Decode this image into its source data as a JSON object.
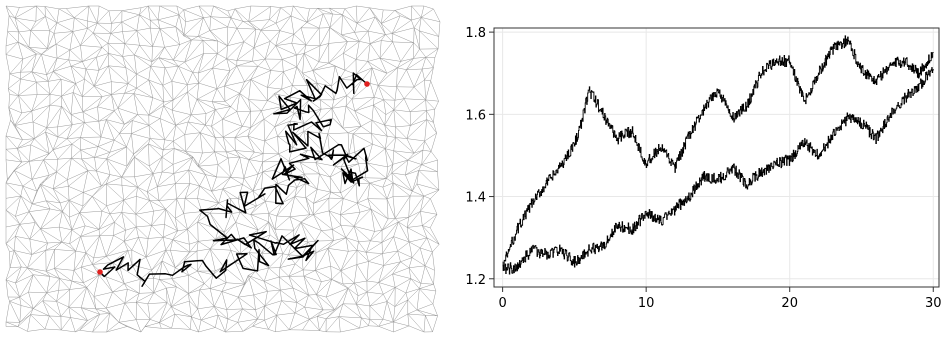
{
  "chart_data": [
    {
      "type": "network-walk",
      "background": "triangulated mesh",
      "colors": {
        "mesh": "#9a9a9a",
        "walk": "#000000",
        "endpoints": "#e0211f"
      },
      "endpoints": 2
    },
    {
      "type": "line",
      "xlim": [
        -0.6,
        30.4
      ],
      "ylim": [
        1.18,
        1.81
      ],
      "xticks": [
        0,
        10,
        20,
        30
      ],
      "yticks": [
        1.2,
        1.4,
        1.6,
        1.8
      ],
      "xtick_labels": [
        "0",
        "10",
        "20",
        "30"
      ],
      "ytick_labels": [
        "1.2",
        "1.4",
        "1.6",
        "1.8"
      ],
      "grid": true,
      "line_color": "#000000",
      "series": [
        {
          "x": [
            0,
            1,
            2,
            3,
            4,
            5,
            5.5,
            6,
            7,
            8,
            9,
            10,
            11,
            12,
            13,
            14,
            15,
            16,
            17,
            18,
            19,
            20,
            21,
            22,
            23,
            24,
            25,
            26,
            27,
            28,
            29,
            30
          ],
          "y": [
            1.23,
            1.32,
            1.38,
            1.43,
            1.47,
            1.53,
            1.58,
            1.66,
            1.6,
            1.54,
            1.56,
            1.48,
            1.52,
            1.47,
            1.55,
            1.61,
            1.66,
            1.59,
            1.62,
            1.7,
            1.73,
            1.73,
            1.63,
            1.7,
            1.76,
            1.78,
            1.71,
            1.68,
            1.72,
            1.73,
            1.7,
            1.75
          ]
        },
        {
          "x": [
            0,
            1,
            2,
            3,
            4,
            5,
            6,
            7,
            8,
            9,
            10,
            11,
            12,
            13,
            14,
            15,
            16,
            17,
            18,
            19,
            20,
            21,
            22,
            23,
            24,
            25,
            26,
            27,
            28,
            29,
            30
          ],
          "y": [
            1.22,
            1.23,
            1.27,
            1.26,
            1.27,
            1.24,
            1.27,
            1.28,
            1.33,
            1.32,
            1.36,
            1.34,
            1.37,
            1.4,
            1.45,
            1.44,
            1.47,
            1.43,
            1.46,
            1.48,
            1.49,
            1.53,
            1.5,
            1.55,
            1.59,
            1.58,
            1.54,
            1.6,
            1.64,
            1.67,
            1.71
          ]
        }
      ]
    }
  ]
}
